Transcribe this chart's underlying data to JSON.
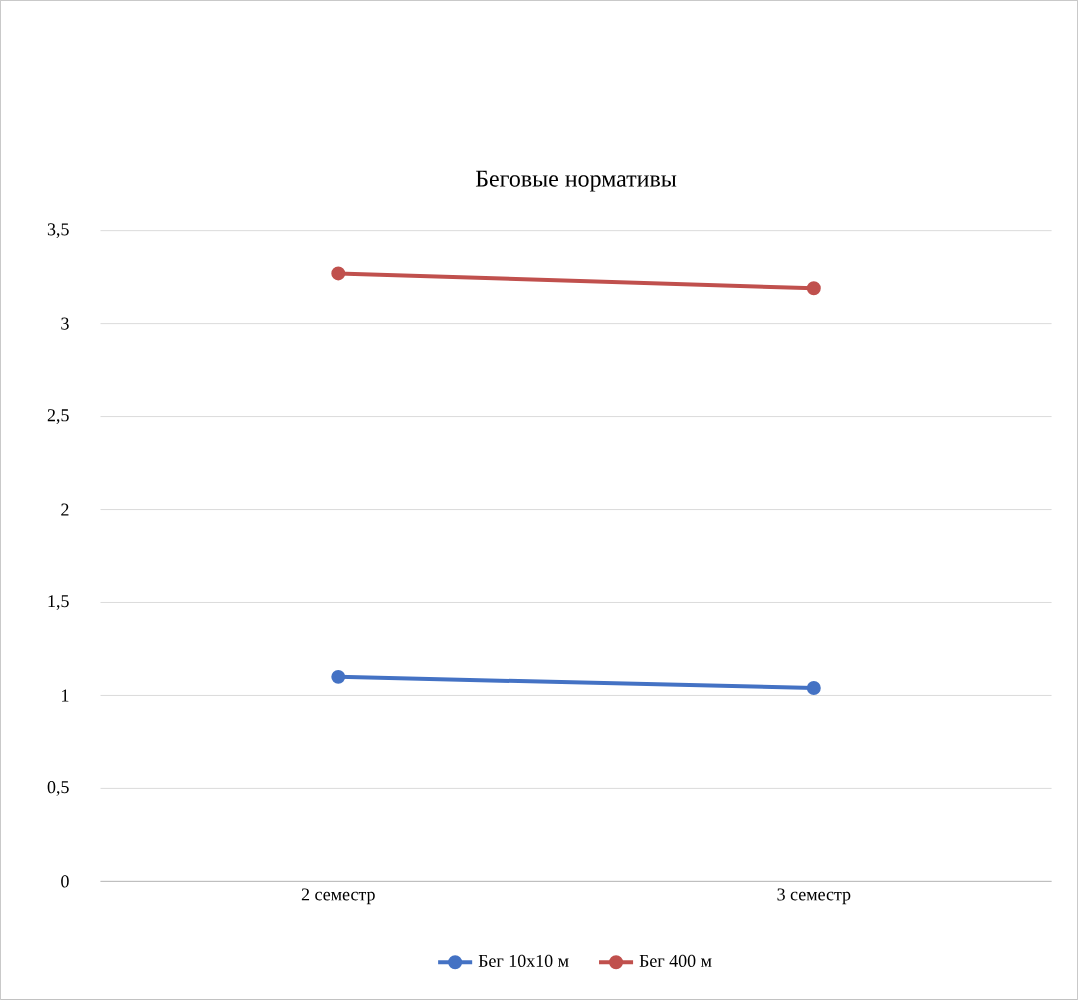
{
  "chart_data": {
    "type": "line",
    "title": "Беговые нормативы",
    "categories": [
      "2 семестр",
      "3 семестр"
    ],
    "series": [
      {
        "name": "Бег 10х10 м",
        "color": "#4472c4",
        "values": [
          1.1,
          1.04
        ]
      },
      {
        "name": "Бег 400 м",
        "color": "#c0504d",
        "values": [
          3.27,
          3.19
        ]
      }
    ],
    "ylim": [
      0,
      3.5
    ],
    "yticks": [
      0,
      {
        "value": 0.5,
        "label": "0,5"
      },
      1,
      {
        "value": 1.5,
        "label": "1,5"
      },
      2,
      {
        "value": 2.5,
        "label": "2,5"
      },
      3,
      {
        "value": 3.5,
        "label": "3,5"
      }
    ],
    "grid": "y",
    "legend": "bottom",
    "marker": "circle",
    "line_style": "solid"
  }
}
